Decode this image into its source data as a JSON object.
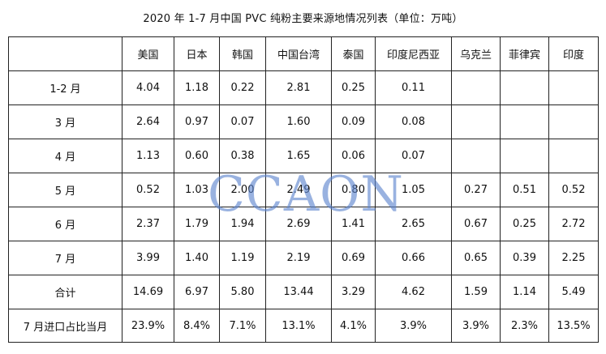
{
  "title": "2020 年 1-7 月中国 PVC 纯粉主要来源地情况列表（单位：万吨）",
  "watermark": "CCAON",
  "table": {
    "header": [
      "",
      "美国",
      "日本",
      "韩国",
      "中国台湾",
      "泰国",
      "印度尼西亚",
      "乌克兰",
      "菲律宾",
      "印度"
    ],
    "rows": [
      [
        "1-2 月",
        "4.04",
        "1.18",
        "0.22",
        "2.81",
        "0.25",
        "0.11",
        "",
        "",
        ""
      ],
      [
        "3 月",
        "2.64",
        "0.97",
        "0.07",
        "1.60",
        "0.09",
        "0.08",
        "",
        "",
        ""
      ],
      [
        "4 月",
        "1.13",
        "0.60",
        "0.38",
        "1.65",
        "0.06",
        "0.07",
        "",
        "",
        ""
      ],
      [
        "5 月",
        "0.52",
        "1.03",
        "2.00",
        "2.49",
        "0.80",
        "1.05",
        "0.27",
        "0.51",
        "0.52"
      ],
      [
        "6 月",
        "2.37",
        "1.79",
        "1.94",
        "2.69",
        "1.41",
        "2.65",
        "0.67",
        "0.25",
        "2.72"
      ],
      [
        "7 月",
        "3.99",
        "1.40",
        "1.19",
        "2.19",
        "0.69",
        "0.66",
        "0.65",
        "0.39",
        "2.25"
      ],
      [
        "合计",
        "14.69",
        "6.97",
        "5.80",
        "13.44",
        "3.29",
        "4.62",
        "1.59",
        "1.14",
        "5.49"
      ],
      [
        "7 月进口占比当月",
        "23.9%",
        "8.4%",
        "7.1%",
        "13.1%",
        "4.1%",
        "3.9%",
        "3.9%",
        "2.3%",
        "13.5%"
      ]
    ]
  }
}
